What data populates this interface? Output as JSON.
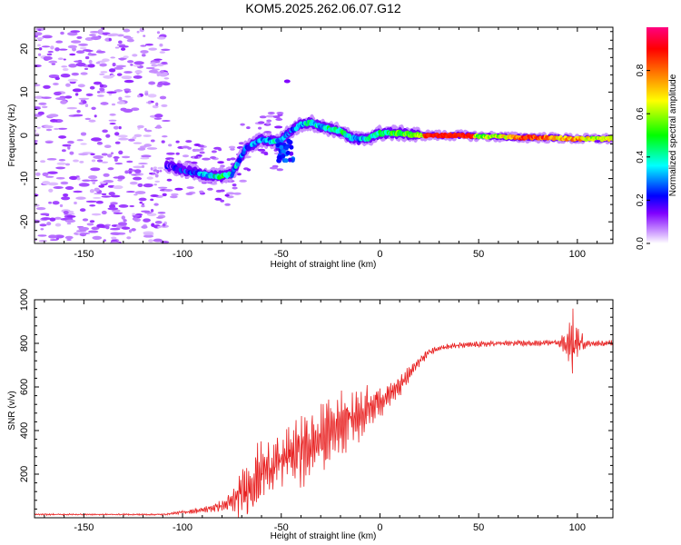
{
  "title": "KOM5.2025.262.06.07.G12",
  "chart_data": [
    {
      "type": "heatmap",
      "xlabel": "Height of straight line (km)",
      "ylabel": "Frequency (Hz)",
      "xlim": [
        -175,
        118
      ],
      "ylim": [
        -25,
        25
      ],
      "x_ticks": [
        -150,
        -100,
        -50,
        0,
        50,
        100
      ],
      "x_tick_labels": [
        "-150",
        "-100",
        "-50",
        "0",
        "50",
        "100"
      ],
      "y_ticks": [
        -20,
        -10,
        0,
        10,
        20
      ],
      "y_tick_labels": [
        "-20",
        "-10",
        "0",
        "10",
        "20"
      ],
      "colorbar": {
        "label": "Normalized spectral amplitude",
        "range": [
          0,
          1
        ],
        "ticks": [
          0.0,
          0.2,
          0.4,
          0.6,
          0.8
        ],
        "tick_labels": [
          "0.0",
          "0.2",
          "0.4",
          "0.6",
          "0.8"
        ],
        "stops": [
          "#ffffff",
          "#d9b3ff",
          "#8000ff",
          "#0000ff",
          "#00ffff",
          "#00ff00",
          "#ffff00",
          "#ff8000",
          "#ff0000",
          "#ff0080"
        ]
      },
      "ridge": {
        "x": [
          -108,
          -100,
          -90,
          -80,
          -75,
          -68,
          -60,
          -52,
          -45,
          -40,
          -35,
          -30,
          -25,
          -20,
          -15,
          -10,
          -5,
          0,
          10,
          20,
          30,
          40,
          50,
          60,
          70,
          80,
          90,
          100,
          110,
          118
        ],
        "freq": [
          -7,
          -8,
          -9,
          -9.5,
          -9,
          -3,
          -1,
          -1.5,
          1,
          2.5,
          3,
          2,
          1.5,
          1,
          -0.5,
          -1,
          -0.5,
          0.5,
          0.5,
          0,
          0,
          0,
          -0.2,
          -0.3,
          -0.5,
          -0.5,
          -0.6,
          -0.8,
          -0.8,
          -0.8
        ],
        "amplitude": [
          0.15,
          0.2,
          0.3,
          0.45,
          0.35,
          0.25,
          0.3,
          0.35,
          0.25,
          0.3,
          0.4,
          0.35,
          0.4,
          0.45,
          0.35,
          0.3,
          0.4,
          0.45,
          0.5,
          0.6,
          0.85,
          0.9,
          0.55,
          0.6,
          0.8,
          0.85,
          0.7,
          0.75,
          0.6,
          0.7
        ]
      },
      "noise_region": [
        -175,
        -108
      ]
    },
    {
      "type": "line",
      "xlabel": "Height of straight line (km)",
      "ylabel": "SNR (v/v)",
      "xlim": [
        -175,
        118
      ],
      "ylim": [
        0,
        1000
      ],
      "x_ticks": [
        -150,
        -100,
        -50,
        0,
        50,
        100
      ],
      "x_tick_labels": [
        "-150",
        "-100",
        "-50",
        "0",
        "50",
        "100"
      ],
      "y_ticks": [
        200,
        400,
        600,
        800,
        1000
      ],
      "y_tick_labels": [
        "200",
        "400",
        "600",
        "800",
        "1000"
      ],
      "series": [
        {
          "name": "SNR",
          "color": "#e82020",
          "x": [
            -175,
            -150,
            -125,
            -110,
            -100,
            -90,
            -80,
            -75,
            -70,
            -65,
            -60,
            -55,
            -50,
            -45,
            -40,
            -35,
            -30,
            -25,
            -20,
            -15,
            -10,
            -5,
            0,
            5,
            10,
            15,
            20,
            25,
            30,
            40,
            50,
            60,
            70,
            80,
            90,
            95,
            98,
            100,
            105,
            110,
            118
          ],
          "values": [
            15,
            15,
            15,
            15,
            25,
            35,
            55,
            70,
            110,
            160,
            210,
            240,
            260,
            290,
            310,
            330,
            360,
            400,
            440,
            460,
            480,
            510,
            540,
            570,
            600,
            660,
            720,
            760,
            780,
            790,
            795,
            800,
            800,
            800,
            805,
            800,
            790,
            805,
            800,
            800,
            800
          ],
          "noise_amplitude": [
            4,
            4,
            4,
            4,
            8,
            15,
            30,
            60,
            120,
            170,
            150,
            120,
            150,
            180,
            200,
            180,
            170,
            150,
            160,
            150,
            140,
            120,
            90,
            60,
            50,
            40,
            25,
            20,
            15,
            15,
            15,
            15,
            15,
            15,
            15,
            70,
            200,
            80,
            15,
            15,
            15
          ]
        }
      ]
    }
  ]
}
